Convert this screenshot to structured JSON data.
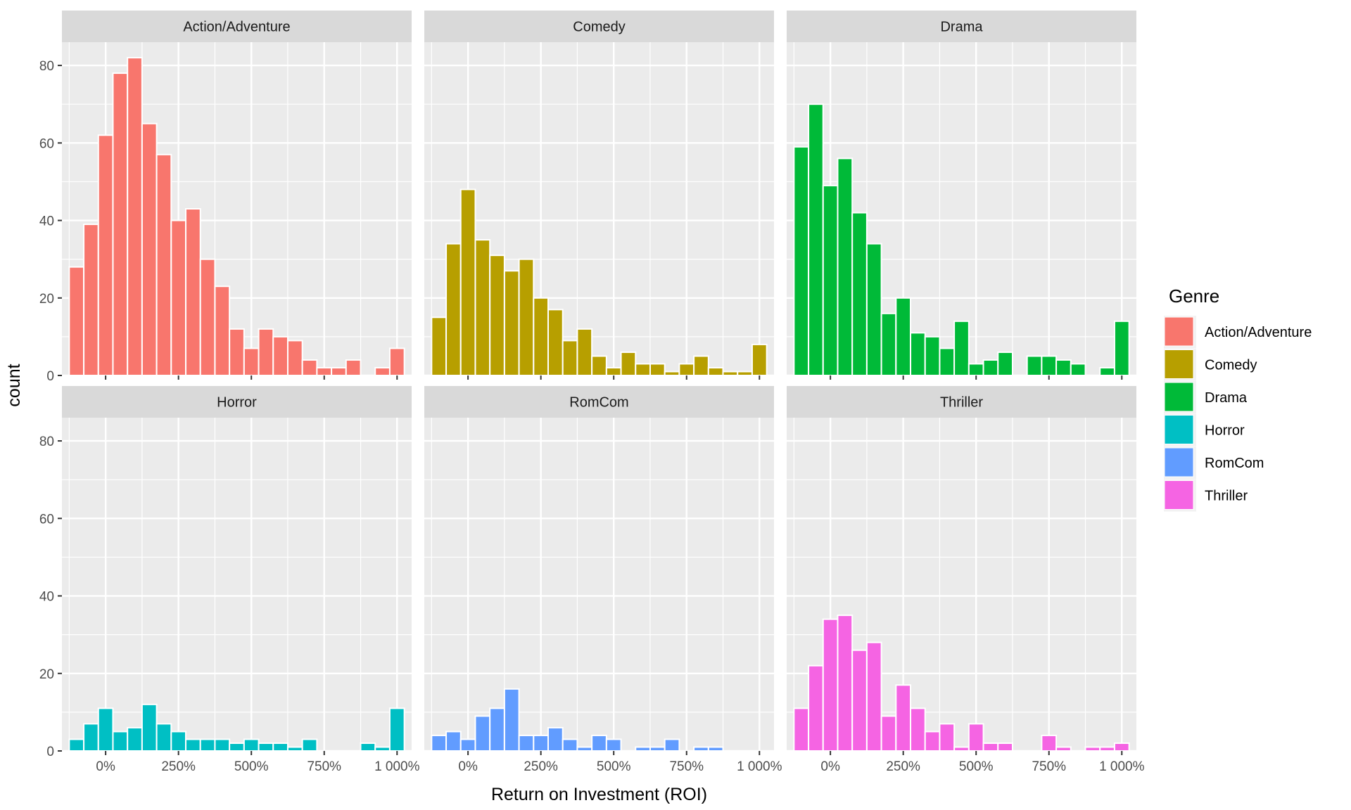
{
  "chart_data": {
    "type": "bar",
    "subtype": "faceted histogram",
    "xlabel": "Return on Investment (ROI)",
    "ylabel": "count",
    "xlim": [
      -150,
      1050
    ],
    "ylim": [
      0,
      86
    ],
    "x_ticks": [
      0,
      250,
      500,
      750,
      1000
    ],
    "x_tick_labels": [
      "0%",
      "250%",
      "500%",
      "750%",
      "1 000%"
    ],
    "y_ticks": [
      0,
      20,
      40,
      60,
      80
    ],
    "y_tick_labels": [
      "0",
      "20",
      "40",
      "60",
      "80"
    ],
    "grid": true,
    "bin_width": 50,
    "bin_centers": [
      -100,
      -50,
      0,
      50,
      100,
      150,
      200,
      250,
      300,
      350,
      400,
      450,
      500,
      550,
      600,
      650,
      700,
      750,
      800,
      850,
      900,
      950,
      1000
    ],
    "legend": {
      "title": "Genre",
      "placement": "right",
      "entries": [
        "Action/Adventure",
        "Comedy",
        "Drama",
        "Horror",
        "RomCom",
        "Thriller"
      ]
    },
    "series": [
      {
        "name": "Action/Adventure",
        "color": "#F8766D",
        "values": [
          28,
          39,
          62,
          78,
          82,
          65,
          57,
          40,
          43,
          30,
          23,
          12,
          7,
          12,
          10,
          9,
          4,
          2,
          2,
          4,
          0,
          2,
          7
        ]
      },
      {
        "name": "Comedy",
        "color": "#B79F00",
        "values": [
          15,
          34,
          48,
          35,
          31,
          27,
          30,
          20,
          17,
          9,
          12,
          5,
          2,
          6,
          3,
          3,
          1,
          3,
          5,
          2,
          1,
          1,
          8
        ]
      },
      {
        "name": "Drama",
        "color": "#00BA38",
        "values": [
          59,
          70,
          49,
          56,
          42,
          34,
          16,
          20,
          11,
          10,
          7,
          14,
          3,
          4,
          6,
          0,
          5,
          5,
          4,
          3,
          0,
          2,
          14
        ]
      },
      {
        "name": "Horror",
        "color": "#00BFC4",
        "values": [
          3,
          7,
          11,
          5,
          6,
          12,
          7,
          5,
          3,
          3,
          3,
          2,
          3,
          2,
          2,
          1,
          3,
          0,
          0,
          0,
          2,
          1,
          11
        ]
      },
      {
        "name": "RomCom",
        "color": "#619CFF",
        "values": [
          4,
          5,
          3,
          9,
          11,
          16,
          4,
          4,
          6,
          3,
          1,
          4,
          3,
          0,
          1,
          1,
          3,
          0,
          1,
          1,
          0,
          0,
          0
        ]
      },
      {
        "name": "Thriller",
        "color": "#F564E3",
        "values": [
          11,
          22,
          34,
          35,
          26,
          28,
          9,
          17,
          11,
          5,
          7,
          1,
          7,
          2,
          2,
          0,
          0,
          4,
          1,
          0,
          1,
          1,
          2
        ]
      }
    ]
  },
  "colors": {
    "panel_background": "#EBEBEB",
    "strip_background": "#D9D9D9",
    "grid": "#FFFFFF",
    "bar_outline": "#FFFFFF"
  }
}
